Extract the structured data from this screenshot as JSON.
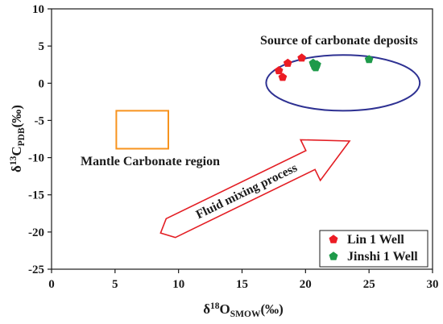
{
  "chart_data": {
    "type": "scatter",
    "xlabel": {
      "prefix": "δ",
      "superscript": "18",
      "symbol": "O",
      "subscript": "SMOW",
      "suffix": "(‰)"
    },
    "ylabel": {
      "prefix": "δ",
      "superscript": "13",
      "symbol": "C",
      "subscript": "PDB",
      "suffix": "(‰)"
    },
    "xlim": [
      0,
      30
    ],
    "ylim": [
      -25,
      10
    ],
    "xticks": [
      0,
      5,
      10,
      15,
      20,
      25,
      30
    ],
    "yticks": [
      10,
      5,
      0,
      -5,
      -10,
      -15,
      -20,
      -25
    ],
    "grid": false,
    "legend_position": "bottom-right",
    "series": [
      {
        "name": "Lin 1 Well",
        "marker": "pentagon",
        "color": "#ec1c24",
        "x": [
          17.9,
          18.2,
          18.6,
          19.7
        ],
        "y": [
          1.7,
          0.8,
          2.7,
          3.4
        ]
      },
      {
        "name": "Jinshi 1 Well",
        "marker": "pentagon",
        "color": "#1e9a4a",
        "x": [
          20.6,
          20.8,
          20.9,
          20.7,
          25.0
        ],
        "y": [
          2.7,
          2.1,
          2.5,
          2.3,
          3.2
        ]
      }
    ],
    "regions": [
      {
        "label": "Source of carbonate deposits",
        "shape": "ellipse",
        "x_range": [
          16.9,
          29.0
        ],
        "y_range": [
          -3.7,
          3.8
        ],
        "color": "#2e3192"
      },
      {
        "label": "Mantle Carbonate region",
        "shape": "rectangle",
        "x_range": [
          5.1,
          9.2
        ],
        "y_range": [
          -8.8,
          -3.7
        ],
        "color": "#f7931e"
      }
    ],
    "arrow": {
      "label": "Fluid mixing process",
      "color": "#e31e24"
    }
  }
}
